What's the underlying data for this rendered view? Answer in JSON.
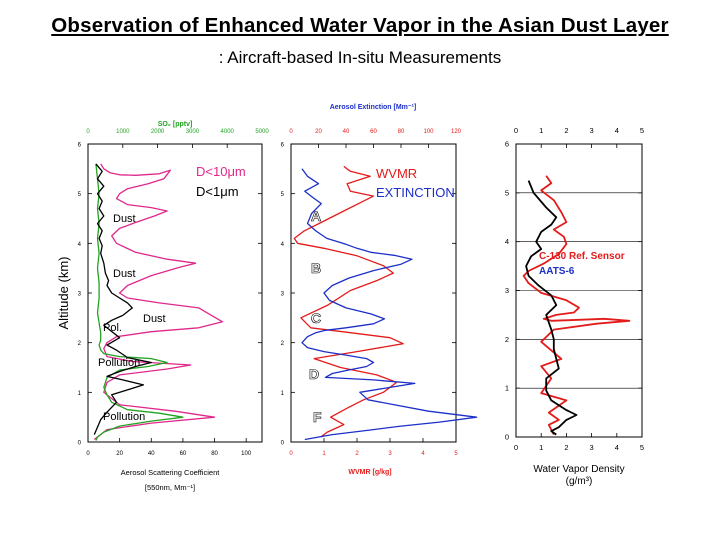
{
  "header": {
    "title": "Observation of Enhanced Water Vapor in the Asian Dust Layer",
    "subtitle": ": Aircraft-based In-situ Measurements"
  },
  "colors": {
    "red": "#e31b1b",
    "blue": "#1c2fc8",
    "green": "#22a322",
    "magenta": "#e0288c",
    "black": "#000000"
  },
  "chart_data": [
    {
      "type": "line",
      "panel": "left",
      "title": "",
      "ylabel": "Altitude (km)",
      "ylim": [
        0,
        6
      ],
      "y_ticks": [
        "0",
        "1",
        "2",
        "3",
        "4",
        "5",
        "6"
      ],
      "bottom_axis": {
        "label_line1": "Aerosol Scattering Coefficient",
        "label_line2": "[550nm, Mm⁻¹]",
        "range": [
          0,
          110
        ],
        "ticks": [
          "0",
          "20",
          "40",
          "60",
          "80",
          "100"
        ]
      },
      "top_axis": {
        "label": "SO₂ [pptv]",
        "range": [
          0,
          5000
        ],
        "ticks": [
          "0",
          "1000",
          "2000",
          "3000",
          "4000",
          "5000"
        ]
      },
      "legend": [
        "D<10μm",
        "D<1μm"
      ],
      "annotations": [
        "Dust",
        "Dust",
        "Dust",
        "Pol.",
        "Pollution",
        "Pollution"
      ],
      "series": [
        {
          "name": "D<10μm",
          "color": "#e0288c",
          "x": [
            8,
            10,
            14,
            20,
            30,
            45,
            52,
            48,
            38,
            25,
            20,
            18,
            25,
            40,
            50,
            42,
            30,
            20,
            15,
            18,
            30,
            50,
            68,
            58,
            40,
            25,
            20,
            25,
            45,
            70,
            85,
            70,
            40,
            18,
            12,
            10,
            12,
            28,
            65,
            50,
            20,
            12,
            10,
            20,
            55,
            80,
            40,
            12,
            4
          ],
          "y": [
            5.6,
            5.5,
            5.42,
            5.38,
            5.37,
            5.4,
            5.47,
            5.3,
            5.2,
            5.1,
            5.0,
            4.9,
            4.78,
            4.72,
            4.65,
            4.55,
            4.42,
            4.3,
            4.15,
            4.0,
            3.82,
            3.68,
            3.6,
            3.52,
            3.35,
            3.15,
            3.0,
            2.9,
            2.8,
            2.7,
            2.42,
            2.3,
            2.22,
            2.12,
            2.0,
            1.88,
            1.72,
            1.62,
            1.55,
            1.47,
            1.35,
            1.2,
            1.0,
            0.75,
            0.62,
            0.5,
            0.38,
            0.25,
            0.05
          ]
        },
        {
          "name": "D<1μm",
          "color": "#22a322",
          "x": [
            5,
            6,
            7,
            6,
            7,
            6,
            7,
            6,
            7,
            7,
            6,
            7,
            8,
            8,
            7,
            8,
            10,
            20,
            40,
            50,
            38,
            20,
            12,
            10,
            12,
            15,
            25,
            45,
            60,
            40,
            20,
            10,
            6,
            5
          ],
          "y": [
            5.6,
            5.3,
            5.0,
            4.7,
            4.4,
            4.1,
            3.8,
            3.5,
            3.2,
            2.9,
            2.6,
            2.4,
            2.2,
            2.05,
            1.95,
            1.85,
            1.78,
            1.72,
            1.68,
            1.6,
            1.52,
            1.45,
            1.3,
            1.1,
            0.95,
            0.8,
            0.65,
            0.58,
            0.5,
            0.42,
            0.32,
            0.2,
            0.1,
            0.03
          ]
        },
        {
          "name": "",
          "color": "#000000",
          "x": [
            5,
            9,
            6,
            10,
            6,
            9,
            7,
            10,
            6,
            9,
            7,
            9,
            8,
            10,
            11,
            13,
            12,
            15,
            20,
            25,
            28,
            22,
            15,
            10,
            14,
            20,
            12,
            18,
            25,
            40,
            30,
            20,
            12,
            22,
            35,
            25,
            15,
            18,
            12,
            8,
            6,
            4
          ],
          "y": [
            5.6,
            5.45,
            5.3,
            5.15,
            5.0,
            4.85,
            4.7,
            4.55,
            4.4,
            4.25,
            4.1,
            3.95,
            3.8,
            3.6,
            3.4,
            3.25,
            3.15,
            3.0,
            2.9,
            2.8,
            2.7,
            2.55,
            2.45,
            2.35,
            2.25,
            2.1,
            1.95,
            1.85,
            1.7,
            1.6,
            1.52,
            1.42,
            1.32,
            1.25,
            1.15,
            1.05,
            0.95,
            0.8,
            0.6,
            0.45,
            0.3,
            0.15
          ]
        }
      ]
    },
    {
      "type": "line",
      "panel": "middle",
      "title": "",
      "ylim": [
        0,
        6
      ],
      "y_ticks": [
        "0",
        "1",
        "2",
        "3",
        "4",
        "5",
        "6"
      ],
      "top_axis": {
        "label": "Aerosol Extinction [Mm⁻¹]",
        "range": [
          0,
          120
        ],
        "ticks": [
          "0",
          "20",
          "40",
          "60",
          "80",
          "100",
          "120"
        ]
      },
      "bottom_axis": {
        "label": "WVMR [g/kg]",
        "range": [
          0,
          5
        ],
        "ticks": [
          "0",
          "1",
          "2",
          "3",
          "4",
          "5"
        ]
      },
      "legend": [
        "WVMR",
        "EXTINCTION"
      ],
      "annotations": [
        "A",
        "B",
        "C",
        "D",
        "F"
      ],
      "series": [
        {
          "name": "WVMR",
          "color": "#e31b1b",
          "x": [
            1.6,
            1.8,
            2.4,
            1.7,
            1.8,
            2.5,
            2.2,
            1.6,
            1.0,
            0.4,
            0.1,
            0.2,
            1.0,
            2.0,
            2.8,
            3.1,
            2.6,
            1.8,
            1.1,
            0.3,
            0.6,
            1.8,
            3.0,
            3.4,
            2.0,
            0.7,
            1.5,
            2.6,
            3.2,
            2.8,
            2.2,
            1.7,
            1.2,
            1.6,
            1.1,
            0.9
          ],
          "y": [
            5.55,
            5.45,
            5.35,
            5.2,
            5.05,
            4.95,
            4.85,
            4.65,
            4.45,
            4.25,
            4.1,
            4.0,
            3.9,
            3.75,
            3.55,
            3.4,
            3.25,
            3.05,
            2.75,
            2.5,
            2.3,
            2.2,
            2.1,
            1.98,
            1.82,
            1.68,
            1.5,
            1.35,
            1.2,
            1.0,
            0.85,
            0.68,
            0.5,
            0.35,
            0.2,
            0.1
          ]
        },
        {
          "name": "EXTINCTION",
          "color": "#1c2fc8",
          "x": [
            8,
            12,
            20,
            10,
            16,
            22,
            15,
            12,
            18,
            26,
            40,
            48,
            58,
            75,
            88,
            80,
            60,
            42,
            30,
            24,
            28,
            40,
            58,
            68,
            60,
            40,
            25,
            18,
            12,
            8,
            12,
            24,
            40,
            55,
            60,
            55,
            42,
            30,
            25,
            60,
            90,
            72,
            50,
            56,
            100,
            135,
            108,
            80,
            60,
            30,
            10
          ],
          "y": [
            5.5,
            5.35,
            5.2,
            5.05,
            4.92,
            4.8,
            4.6,
            4.4,
            4.25,
            4.1,
            3.98,
            3.9,
            3.82,
            3.76,
            3.68,
            3.58,
            3.45,
            3.3,
            3.15,
            3.0,
            2.85,
            2.7,
            2.58,
            2.48,
            2.38,
            2.3,
            2.25,
            2.2,
            2.12,
            2.0,
            1.9,
            1.82,
            1.75,
            1.68,
            1.6,
            1.52,
            1.45,
            1.38,
            1.3,
            1.25,
            1.18,
            1.1,
            1.0,
            0.85,
            0.62,
            0.5,
            0.4,
            0.32,
            0.25,
            0.15,
            0.05
          ]
        }
      ]
    },
    {
      "type": "line",
      "panel": "right",
      "title": "",
      "ylim": [
        0,
        6
      ],
      "y_ticks": [
        "0",
        "1",
        "2",
        "3",
        "4",
        "5",
        "6"
      ],
      "top_axis": {
        "range": [
          0,
          5
        ],
        "ticks": [
          "0",
          "1",
          "2",
          "3",
          "4",
          "5"
        ]
      },
      "bottom_axis": {
        "label_line1": "Water Vapor Density",
        "label_line2": "(g/m³)",
        "range": [
          0,
          5
        ],
        "ticks": [
          "0",
          "1",
          "2",
          "3",
          "4",
          "5"
        ]
      },
      "legend": [
        "C-130 Ref. Sensor",
        "AATS-6"
      ],
      "series": [
        {
          "name": "C-130 Ref. Sensor",
          "color": "#e31b1b",
          "x": [
            1.2,
            1.4,
            1.0,
            1.5,
            1.8,
            2.0,
            1.5,
            1.9,
            2.0,
            1.7,
            1.1,
            0.5,
            0.3,
            0.5,
            1.0,
            2.0,
            2.5,
            2.3,
            1.6,
            1.1,
            1.4,
            2.5,
            3.5,
            4.5,
            3.2,
            1.5,
            1.0,
            1.8,
            1.0,
            1.4,
            1.0,
            2.0,
            1.3,
            1.7,
            1.3,
            1.5
          ],
          "y": [
            5.35,
            5.2,
            5.05,
            4.85,
            4.6,
            4.4,
            4.25,
            4.1,
            3.95,
            3.75,
            3.55,
            3.4,
            3.3,
            3.15,
            2.95,
            2.8,
            2.65,
            2.55,
            2.5,
            2.42,
            2.38,
            2.4,
            2.42,
            2.38,
            2.32,
            2.2,
            1.95,
            1.6,
            1.45,
            1.2,
            0.9,
            0.75,
            0.5,
            0.35,
            0.25,
            0.05
          ]
        },
        {
          "name": "AATS-6",
          "color": "#000000",
          "x": [
            0.5,
            0.7,
            1.2,
            1.6,
            1.4,
            1.0,
            0.8,
            1.0,
            0.6,
            0.4,
            0.5,
            0.9,
            1.4,
            1.6,
            1.2,
            1.4,
            1.5,
            1.5,
            1.6,
            1.7,
            1.2,
            1.2,
            1.4,
            2.0,
            2.4,
            2.0,
            1.7,
            1.4,
            1.6
          ],
          "y": [
            5.25,
            5.0,
            4.7,
            4.5,
            4.35,
            4.2,
            4.0,
            3.85,
            3.7,
            3.5,
            3.3,
            3.1,
            2.9,
            2.7,
            2.5,
            2.2,
            2.0,
            1.8,
            1.6,
            1.4,
            1.2,
            0.95,
            0.75,
            0.55,
            0.45,
            0.35,
            0.2,
            0.12,
            0.05
          ]
        }
      ]
    }
  ]
}
